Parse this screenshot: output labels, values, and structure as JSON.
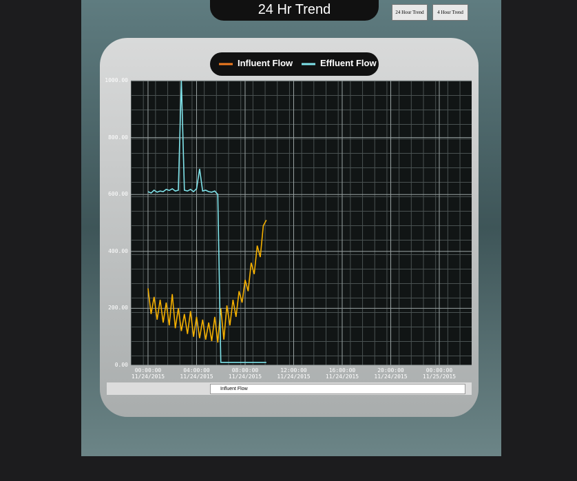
{
  "header": {
    "title": "24 Hr Trend",
    "buttons": [
      "24 Hour Trend",
      "4 Hour Trend"
    ]
  },
  "toolbar": {
    "selected": "Influent Flow"
  },
  "chart_data": {
    "type": "line",
    "x": [
      "2015-11-24T00:00",
      "2015-11-24T00:15",
      "2015-11-24T00:30",
      "2015-11-24T00:45",
      "2015-11-24T01:00",
      "2015-11-24T01:15",
      "2015-11-24T01:30",
      "2015-11-24T01:45",
      "2015-11-24T02:00",
      "2015-11-24T02:15",
      "2015-11-24T02:30",
      "2015-11-24T02:45",
      "2015-11-24T03:00",
      "2015-11-24T03:15",
      "2015-11-24T03:30",
      "2015-11-24T03:45",
      "2015-11-24T04:00",
      "2015-11-24T04:15",
      "2015-11-24T04:30",
      "2015-11-24T04:45",
      "2015-11-24T05:00",
      "2015-11-24T05:15",
      "2015-11-24T05:30",
      "2015-11-24T05:45",
      "2015-11-24T06:00",
      "2015-11-24T06:15",
      "2015-11-24T06:30",
      "2015-11-24T06:45",
      "2015-11-24T07:00",
      "2015-11-24T07:15",
      "2015-11-24T07:30",
      "2015-11-24T07:45",
      "2015-11-24T08:00",
      "2015-11-24T08:15",
      "2015-11-24T08:30",
      "2015-11-24T08:45",
      "2015-11-24T09:00",
      "2015-11-24T09:15",
      "2015-11-24T09:30",
      "2015-11-24T09:45"
    ],
    "series": [
      {
        "name": "Influent Flow",
        "color": "#f5b000",
        "legend_color": "#f07a20",
        "values": [
          270,
          180,
          240,
          160,
          230,
          150,
          220,
          140,
          250,
          130,
          200,
          120,
          180,
          110,
          190,
          100,
          170,
          95,
          160,
          90,
          150,
          85,
          170,
          80,
          200,
          90,
          210,
          140,
          230,
          170,
          260,
          220,
          300,
          260,
          360,
          320,
          420,
          380,
          490,
          510
        ]
      },
      {
        "name": "Effluent Flow",
        "color": "#7fe3ea",
        "legend_color": "#7fe3ea",
        "values": [
          610,
          605,
          615,
          608,
          612,
          610,
          618,
          614,
          620,
          612,
          615,
          1000,
          615,
          612,
          618,
          610,
          620,
          690,
          612,
          615,
          610,
          608,
          612,
          600,
          10,
          10,
          10,
          10,
          10,
          10,
          10,
          10,
          10,
          10,
          10,
          10,
          10,
          10,
          10,
          10
        ]
      }
    ],
    "xlim": [
      "2015-11-23T22:35",
      "2015-11-25T02:40"
    ],
    "xticks": [
      {
        "value": "2015-11-24T00:00",
        "label": "00:00:00\n11/24/2015"
      },
      {
        "value": "2015-11-24T04:00",
        "label": "04:00:00\n11/24/2015"
      },
      {
        "value": "2015-11-24T08:00",
        "label": "08:00:00\n11/24/2015"
      },
      {
        "value": "2015-11-24T12:00",
        "label": "12:00:00\n11/24/2015"
      },
      {
        "value": "2015-11-24T16:00",
        "label": "16:00:00\n11/24/2015"
      },
      {
        "value": "2015-11-24T20:00",
        "label": "20:00:00\n11/24/2015"
      },
      {
        "value": "2015-11-25T00:00",
        "label": "00:00:00\n11/25/2015"
      }
    ],
    "ylim": [
      0,
      1000
    ],
    "yticks": [
      {
        "value": 0,
        "label": "0.00"
      },
      {
        "value": 200,
        "label": "200.00"
      },
      {
        "value": 400,
        "label": "400.00"
      },
      {
        "value": 600,
        "label": "600.00"
      },
      {
        "value": 800,
        "label": "800.00"
      },
      {
        "value": 1000,
        "label": "1000.00"
      }
    ],
    "grid": true
  }
}
